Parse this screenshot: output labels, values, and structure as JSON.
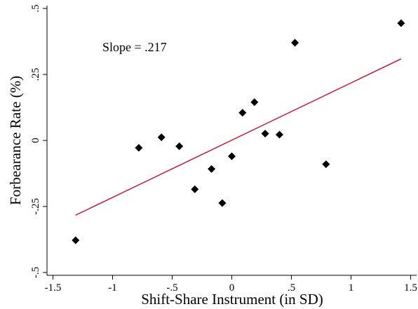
{
  "chart_data": {
    "type": "scatter",
    "title": "",
    "xlabel": "Shift-Share Instrument (in SD)",
    "ylabel": "Forbearance Rate (%)",
    "xlim": [
      -1.55,
      1.55
    ],
    "ylim": [
      -0.5,
      0.5
    ],
    "x_ticks": [
      -1.5,
      -1,
      -0.5,
      0,
      0.5,
      1,
      1.5
    ],
    "x_tick_labels": [
      "-1.5",
      "-1",
      "-.5",
      "0",
      ".5",
      "1",
      "1.5"
    ],
    "y_ticks": [
      -0.5,
      -0.25,
      0,
      0.25,
      0.5
    ],
    "y_tick_labels": [
      "-.5",
      "-.25",
      "0",
      ".25",
      ".5"
    ],
    "grid": false,
    "marker": "diamond",
    "marker_color": "#000000",
    "fit_line_color": "#c8102e",
    "points": [
      {
        "x": -1.31,
        "y": -0.378
      },
      {
        "x": -0.78,
        "y": -0.028
      },
      {
        "x": -0.59,
        "y": 0.012
      },
      {
        "x": -0.44,
        "y": -0.022
      },
      {
        "x": -0.31,
        "y": -0.185
      },
      {
        "x": -0.17,
        "y": -0.108
      },
      {
        "x": -0.08,
        "y": -0.237
      },
      {
        "x": 0.0,
        "y": -0.06
      },
      {
        "x": 0.09,
        "y": 0.105
      },
      {
        "x": 0.19,
        "y": 0.145
      },
      {
        "x": 0.28,
        "y": 0.026
      },
      {
        "x": 0.4,
        "y": 0.022
      },
      {
        "x": 0.53,
        "y": 0.37
      },
      {
        "x": 0.79,
        "y": -0.09
      },
      {
        "x": 1.42,
        "y": 0.444
      }
    ],
    "fit_line": {
      "x": [
        -1.31,
        1.42
      ],
      "y": [
        -0.283,
        0.309
      ]
    },
    "annotation": "Slope = .217"
  }
}
